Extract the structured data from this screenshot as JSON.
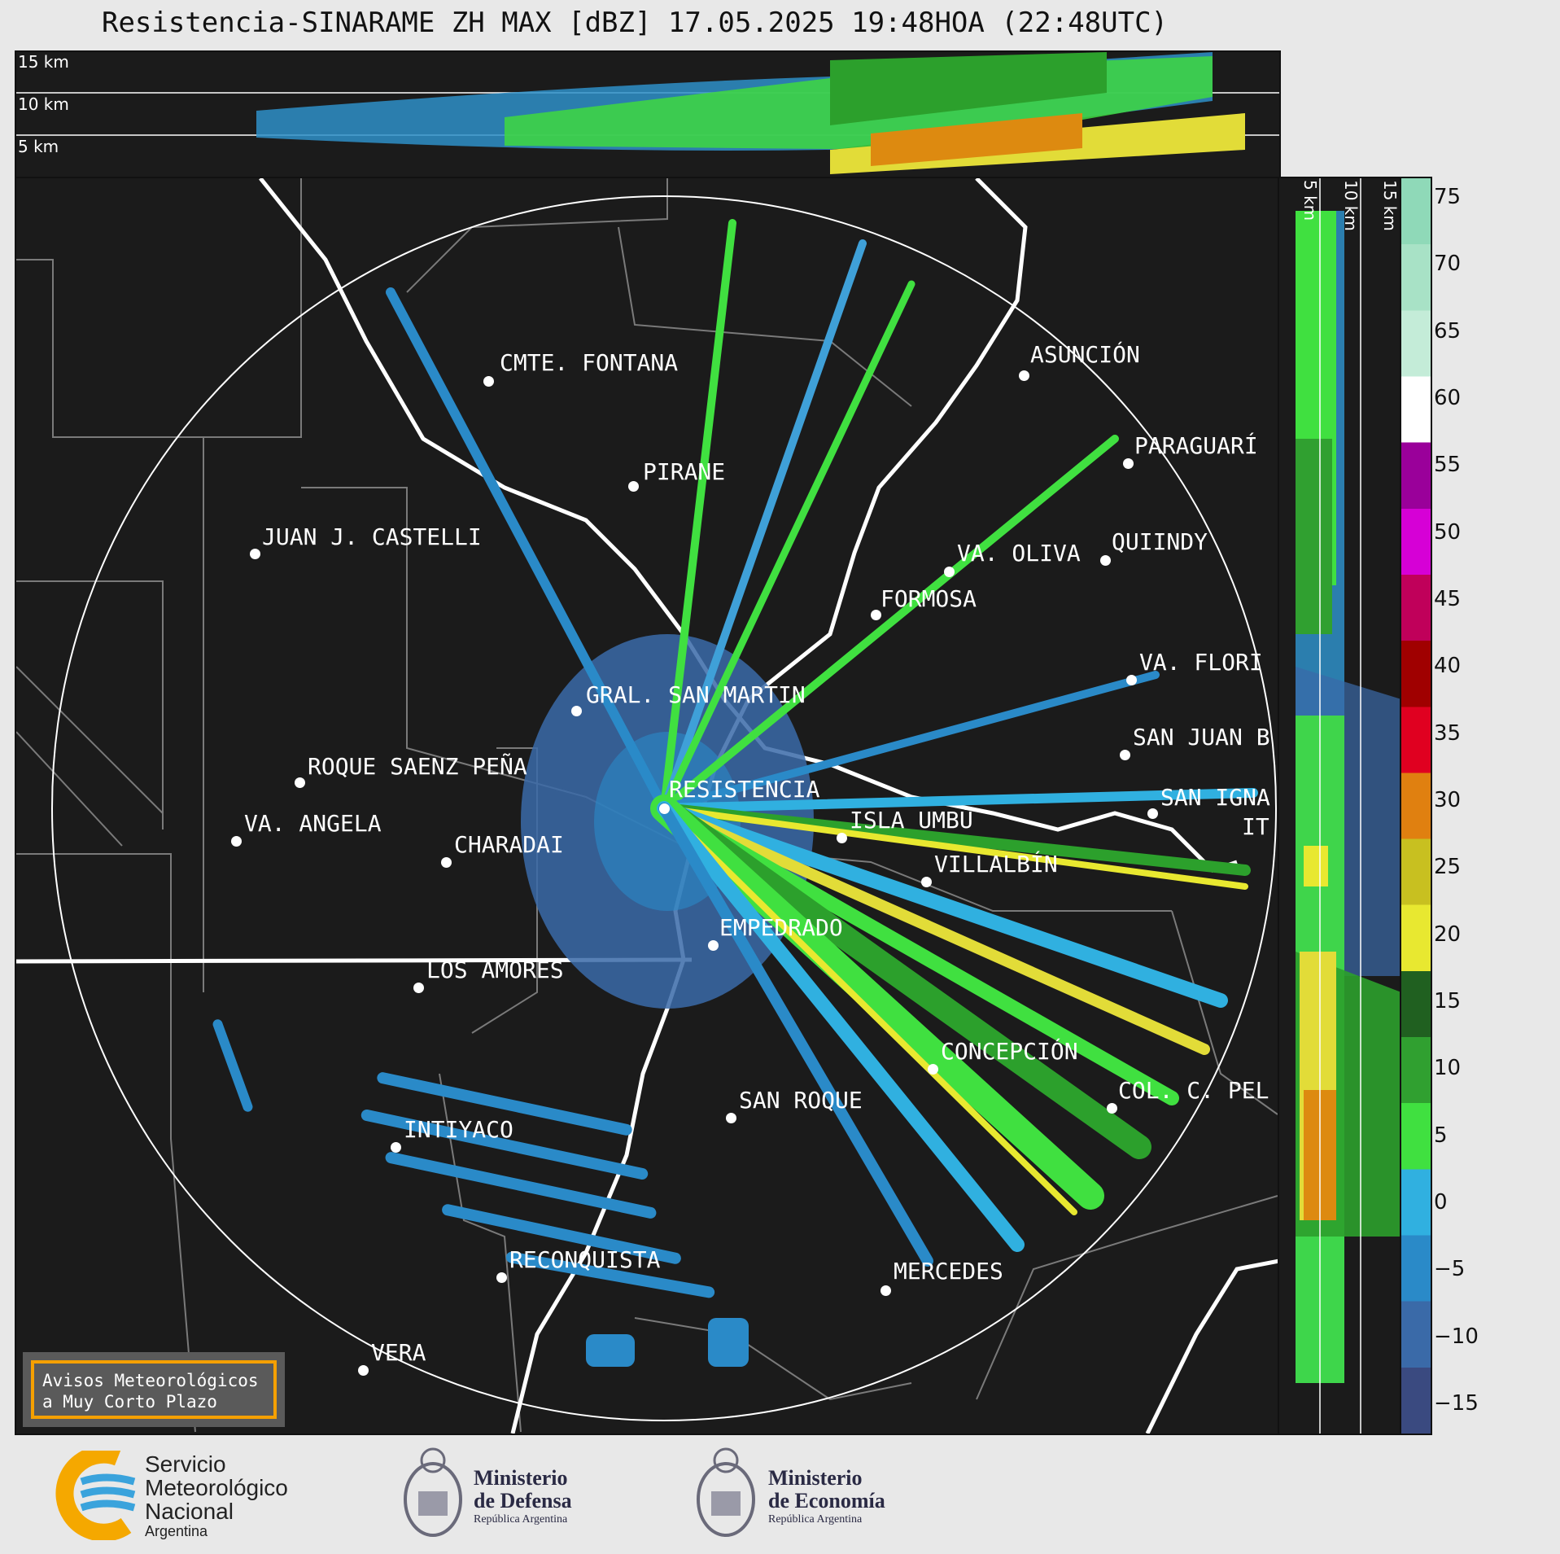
{
  "title": "Resistencia-SINARAME ZH MAX [dBZ] 17.05.2025 19:48HOA (22:48UTC)",
  "height_labels": [
    "15 km",
    "10 km",
    "5 km"
  ],
  "side_labels": [
    "5 km",
    "10 km",
    "15 km"
  ],
  "colorbar": {
    "ticks": [
      "75",
      "70",
      "65",
      "60",
      "55",
      "50",
      "45",
      "40",
      "35",
      "30",
      "25",
      "20",
      "15",
      "10",
      "5",
      "0",
      "−5",
      "−10",
      "−15"
    ],
    "colors": [
      "#8fd9b8",
      "#a8e2c6",
      "#c4ecd8",
      "#ffffff",
      "#9a009a",
      "#d600d6",
      "#c0005a",
      "#a00000",
      "#e00020",
      "#e08010",
      "#c8c020",
      "#e8e830",
      "#206020",
      "#30a030",
      "#40e040",
      "#30b0e0",
      "#2a8ac8",
      "#3a6aa8",
      "#3a4a80"
    ]
  },
  "cities": [
    {
      "name": "CMTE. FONTANA"
    },
    {
      "name": "ASUNCIÓN"
    },
    {
      "name": "PIRANE"
    },
    {
      "name": "PARAGUARÍ"
    },
    {
      "name": "JUAN J. CASTELLI"
    },
    {
      "name": "VA. OLIVA"
    },
    {
      "name": "QUIINDY"
    },
    {
      "name": "FORMOSA"
    },
    {
      "name": "VA. FLORI"
    },
    {
      "name": "GRAL. SAN MARTIN"
    },
    {
      "name": "SAN JUAN B"
    },
    {
      "name": "ROQUE SAENZ PEÑA"
    },
    {
      "name": "SAN IGNA"
    },
    {
      "name": "ISLA UMBÚ"
    },
    {
      "name": "VILLALBÍN"
    },
    {
      "name": "RESISTENCIA"
    },
    {
      "name": "IT"
    },
    {
      "name": "VA. ANGELA"
    },
    {
      "name": "CHARADAI"
    },
    {
      "name": "EMPEDRADO"
    },
    {
      "name": "LOS AMORES"
    },
    {
      "name": "CONCEPCIÓN"
    },
    {
      "name": "SAN ROQUE"
    },
    {
      "name": "COL. C. PEL"
    },
    {
      "name": "INTIYACO"
    },
    {
      "name": "RECONQUISTA"
    },
    {
      "name": "MERCEDES"
    },
    {
      "name": "VERA"
    }
  ],
  "notice": {
    "line1": "Avisos Meteorológicos",
    "line2": "a Muy Corto Plazo"
  },
  "logos": {
    "smn": {
      "line1": "Servicio",
      "line2": "Meteorológico",
      "line3": "Nacional",
      "line4": "Argentina"
    },
    "defensa": {
      "line1": "Ministerio",
      "line2": "de Defensa",
      "line3": "República Argentina"
    },
    "economia": {
      "line1": "Ministerio",
      "line2": "de Economía",
      "line3": "República Argentina"
    }
  }
}
